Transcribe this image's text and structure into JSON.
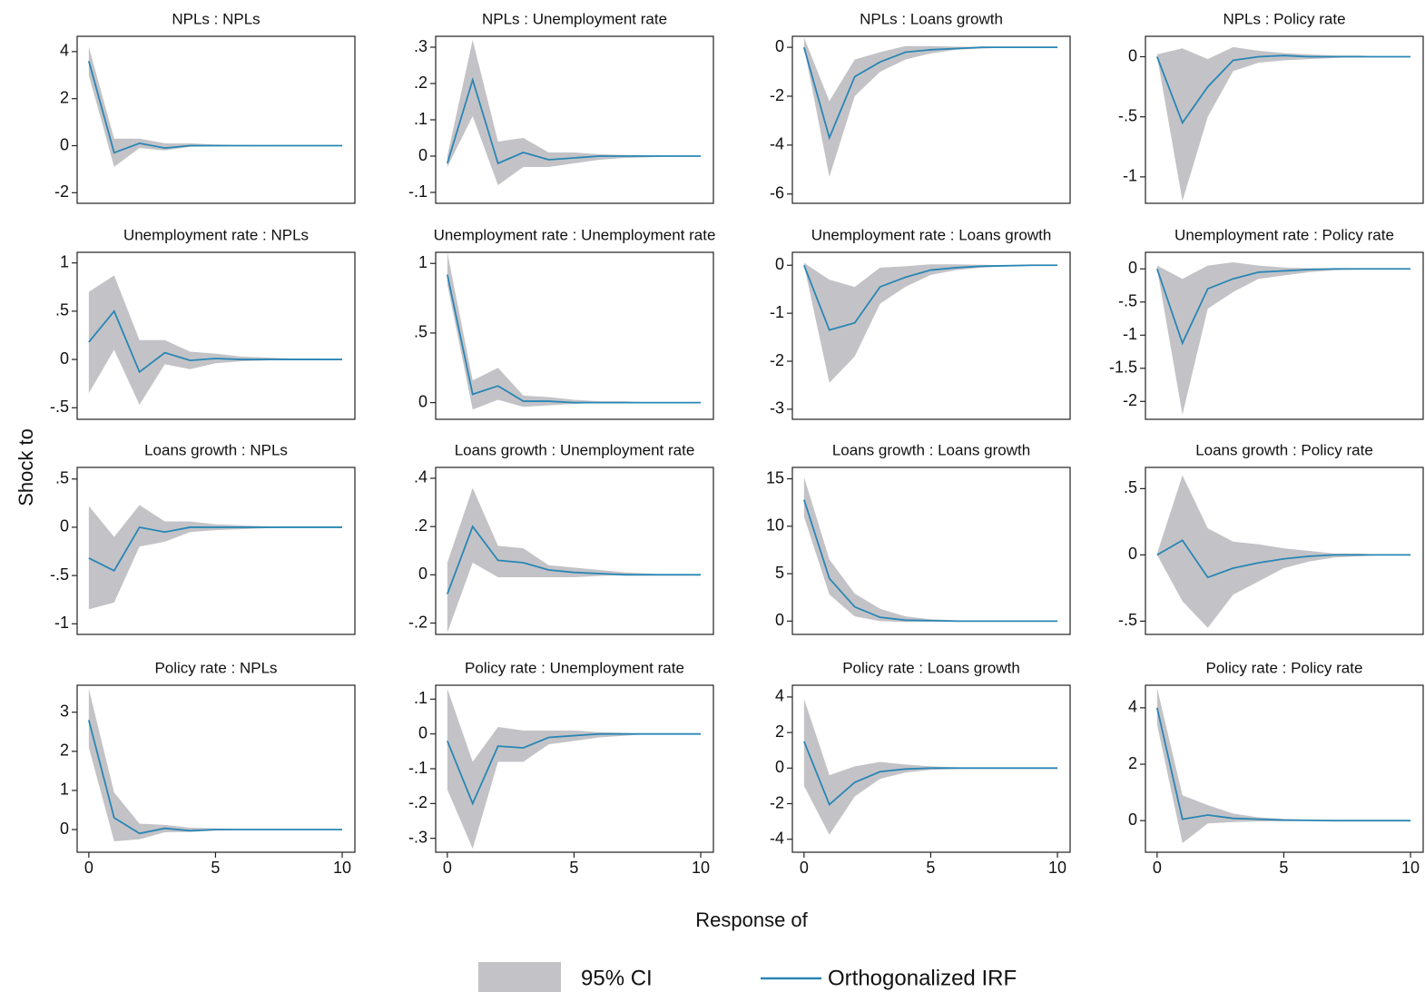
{
  "xlabel": "Response of",
  "ylabel": "Shock to",
  "legend": {
    "band": "95% CI",
    "line": "Orthogonalized IRF"
  },
  "band_color": "#c3c3c7",
  "line_color": "#2a86b4",
  "x": [
    0,
    1,
    2,
    3,
    4,
    5,
    6,
    7,
    8,
    9,
    10
  ],
  "xlim": [
    -0.46,
    10.5
  ],
  "xticks": [
    0,
    5,
    10
  ],
  "chart_data": [
    {
      "type": "line",
      "title": "NPLs : NPLs",
      "ylim": [
        -2.45,
        4.65
      ],
      "yticks": [
        4,
        2,
        0,
        -2
      ],
      "values": [
        3.6,
        -0.3,
        0.1,
        -0.1,
        0,
        0,
        0,
        0,
        0,
        0,
        0
      ],
      "lower": [
        3.0,
        -0.9,
        -0.1,
        -0.2,
        -0.05,
        -0.03,
        -0.02,
        -0.01,
        -0.01,
        0,
        0
      ],
      "upper": [
        4.2,
        0.3,
        0.3,
        0.1,
        0.1,
        0.05,
        0.03,
        0.02,
        0.01,
        0.01,
        0
      ]
    },
    {
      "type": "line",
      "title": "NPLs : Unemployment rate",
      "ylim": [
        -0.13,
        0.33
      ],
      "yticks": [
        {
          "value": 0.3,
          "label": ".3"
        },
        {
          "value": 0.2,
          "label": ".2"
        },
        {
          "value": 0.1,
          "label": ".1"
        },
        0,
        {
          "value": -0.1,
          "label": "-.1"
        }
      ],
      "values": [
        -0.02,
        0.21,
        -0.02,
        0.01,
        -0.01,
        -0.005,
        0,
        0,
        0,
        0,
        0
      ],
      "lower": [
        -0.03,
        0.11,
        -0.08,
        -0.03,
        -0.03,
        -0.02,
        -0.01,
        -0.005,
        -0.003,
        0,
        0
      ],
      "upper": [
        0,
        0.32,
        0.04,
        0.05,
        0.01,
        0.01,
        0.005,
        0.003,
        0.002,
        0.001,
        0
      ]
    },
    {
      "type": "line",
      "title": "NPLs : Loans growth",
      "ylim": [
        -6.38,
        0.45
      ],
      "yticks": [
        0,
        -2,
        -4,
        -6
      ],
      "values": [
        0,
        -3.7,
        -1.2,
        -0.6,
        -0.2,
        -0.1,
        -0.05,
        0,
        0,
        0,
        0
      ],
      "lower": [
        0,
        -5.3,
        -2,
        -1,
        -0.5,
        -0.25,
        -0.1,
        -0.05,
        -0.02,
        0,
        0
      ],
      "upper": [
        0.4,
        -2.2,
        -0.5,
        -0.2,
        0.05,
        0.05,
        0.03,
        0.01,
        0,
        0,
        0
      ]
    },
    {
      "type": "line",
      "title": "NPLs : Policy rate",
      "ylim": [
        -1.22,
        0.17
      ],
      "yticks": [
        0,
        {
          "value": -0.5,
          "label": "-.5"
        },
        -1
      ],
      "values": [
        0,
        -0.55,
        -0.25,
        -0.03,
        0,
        0.01,
        0,
        0,
        0,
        0,
        0
      ],
      "lower": [
        0,
        -1.2,
        -0.5,
        -0.12,
        -0.05,
        -0.03,
        -0.02,
        -0.01,
        0,
        0,
        0
      ],
      "upper": [
        0.02,
        0.07,
        -0.02,
        0.08,
        0.05,
        0.03,
        0.02,
        0.01,
        0.01,
        0,
        0
      ]
    },
    {
      "type": "line",
      "title": "Unemployment rate : NPLs",
      "ylim": [
        -0.62,
        1.11
      ],
      "yticks": [
        1,
        {
          "value": 0.5,
          "label": ".5"
        },
        0,
        {
          "value": -0.5,
          "label": "-.5"
        }
      ],
      "values": [
        0.18,
        0.5,
        -0.13,
        0.07,
        -0.01,
        0.01,
        0,
        0,
        0,
        0,
        0
      ],
      "lower": [
        -0.35,
        0.1,
        -0.47,
        -0.05,
        -0.1,
        -0.04,
        -0.02,
        -0.01,
        0,
        0,
        0
      ],
      "upper": [
        0.7,
        0.87,
        0.2,
        0.2,
        0.08,
        0.06,
        0.03,
        0.02,
        0.01,
        0.01,
        0
      ]
    },
    {
      "type": "line",
      "title": "Unemployment rate : Unemployment rate",
      "ylim": [
        -0.12,
        1.08
      ],
      "yticks": [
        1,
        {
          "value": 0.5,
          "label": ".5"
        },
        0
      ],
      "values": [
        0.92,
        0.06,
        0.12,
        0.01,
        0.01,
        0,
        0,
        0,
        0,
        0,
        0
      ],
      "lower": [
        0.85,
        -0.05,
        0.02,
        -0.03,
        -0.02,
        -0.01,
        0,
        0,
        0,
        0,
        0
      ],
      "upper": [
        1.08,
        0.16,
        0.25,
        0.05,
        0.04,
        0.02,
        0.01,
        0.01,
        0,
        0,
        0
      ]
    },
    {
      "type": "line",
      "title": "Unemployment rate : Loans growth",
      "ylim": [
        -3.21,
        0.27
      ],
      "yticks": [
        0,
        -1,
        -2,
        -3
      ],
      "values": [
        0,
        -1.35,
        -1.2,
        -0.45,
        -0.25,
        -0.1,
        -0.05,
        -0.02,
        -0.01,
        0,
        0
      ],
      "lower": [
        0,
        -2.45,
        -1.9,
        -0.8,
        -0.45,
        -0.2,
        -0.1,
        -0.05,
        -0.02,
        -0.01,
        0
      ],
      "upper": [
        0.05,
        -0.3,
        -0.45,
        -0.05,
        -0.02,
        0.02,
        0.02,
        0.01,
        0,
        0,
        0
      ]
    },
    {
      "type": "line",
      "title": "Unemployment rate : Policy rate",
      "ylim": [
        -2.27,
        0.25
      ],
      "yticks": [
        0,
        {
          "value": -0.5,
          "label": "-.5"
        },
        -1,
        -1.5,
        -2
      ],
      "values": [
        0,
        -1.12,
        -0.3,
        -0.15,
        -0.05,
        -0.03,
        -0.01,
        0,
        0,
        0,
        0
      ],
      "lower": [
        0,
        -2.2,
        -0.6,
        -0.35,
        -0.15,
        -0.1,
        -0.05,
        -0.02,
        -0.01,
        0,
        0
      ],
      "upper": [
        0.05,
        -0.15,
        0.05,
        0.1,
        0.05,
        0.02,
        0.01,
        0.01,
        0,
        0,
        0
      ]
    },
    {
      "type": "line",
      "title": "Loans growth : NPLs",
      "ylim": [
        -1.11,
        0.62
      ],
      "yticks": [
        {
          "value": 0.5,
          "label": ".5"
        },
        0,
        {
          "value": -0.5,
          "label": "-.5"
        },
        -1
      ],
      "values": [
        -0.32,
        -0.45,
        0,
        -0.05,
        0,
        0,
        0,
        0,
        0,
        0,
        0
      ],
      "lower": [
        -0.85,
        -0.78,
        -0.2,
        -0.15,
        -0.05,
        -0.03,
        -0.02,
        -0.01,
        0,
        0,
        0
      ],
      "upper": [
        0.22,
        -0.1,
        0.23,
        0.06,
        0.06,
        0.03,
        0.02,
        0.01,
        0,
        0,
        0
      ]
    },
    {
      "type": "line",
      "title": "Loans growth : Unemployment rate",
      "ylim": [
        -0.247,
        0.445
      ],
      "yticks": [
        {
          "value": 0.4,
          "label": ".4"
        },
        {
          "value": 0.2,
          "label": ".2"
        },
        0,
        {
          "value": -0.2,
          "label": "-.2"
        }
      ],
      "values": [
        -0.08,
        0.2,
        0.06,
        0.05,
        0.02,
        0.01,
        0.005,
        0,
        0,
        0,
        0
      ],
      "lower": [
        -0.24,
        0.05,
        -0.01,
        -0.01,
        -0.01,
        -0.01,
        -0.005,
        0,
        0,
        0,
        0
      ],
      "upper": [
        0.05,
        0.36,
        0.12,
        0.11,
        0.04,
        0.03,
        0.02,
        0.01,
        0.005,
        0,
        0
      ]
    },
    {
      "type": "line",
      "title": "Loans growth : Loans growth",
      "ylim": [
        -1.4,
        16.2
      ],
      "yticks": [
        15,
        10,
        5,
        0
      ],
      "values": [
        12.8,
        4.5,
        1.5,
        0.4,
        0.1,
        0.05,
        0,
        0,
        0,
        0,
        0
      ],
      "lower": [
        11,
        2.8,
        0.5,
        0,
        -0.1,
        -0.05,
        0,
        0,
        0,
        0,
        0
      ],
      "upper": [
        15.2,
        6.5,
        2.9,
        1.3,
        0.5,
        0.2,
        0.1,
        0.05,
        0,
        0,
        0
      ]
    },
    {
      "type": "line",
      "title": "Loans growth : Policy rate",
      "ylim": [
        -0.6,
        0.66
      ],
      "yticks": [
        {
          "value": 0.5,
          "label": ".5"
        },
        0,
        {
          "value": -0.5,
          "label": "-.5"
        }
      ],
      "values": [
        0,
        0.11,
        -0.17,
        -0.1,
        -0.06,
        -0.03,
        -0.01,
        0,
        0,
        0,
        0
      ],
      "lower": [
        0,
        -0.35,
        -0.55,
        -0.3,
        -0.2,
        -0.1,
        -0.05,
        -0.02,
        -0.01,
        0,
        0
      ],
      "upper": [
        0.01,
        0.6,
        0.2,
        0.1,
        0.08,
        0.05,
        0.03,
        0.01,
        0.01,
        0,
        0
      ]
    },
    {
      "type": "line",
      "title": "Policy rate : NPLs",
      "ylim": [
        -0.58,
        3.69
      ],
      "yticks": [
        3,
        2,
        1,
        0
      ],
      "values": [
        2.8,
        0.3,
        -0.1,
        0.03,
        -0.03,
        0,
        0,
        0,
        0,
        0,
        0
      ],
      "lower": [
        2.1,
        -0.3,
        -0.25,
        -0.07,
        -0.06,
        -0.03,
        -0.01,
        0,
        0,
        0,
        0
      ],
      "upper": [
        3.6,
        0.95,
        0.15,
        0.12,
        0.05,
        0.03,
        0.01,
        0.01,
        0,
        0,
        0
      ]
    },
    {
      "type": "line",
      "title": "Policy rate : Unemployment rate",
      "ylim": [
        -0.34,
        0.14
      ],
      "yticks": [
        {
          "value": 0.1,
          "label": ".1"
        },
        0,
        {
          "value": -0.1,
          "label": "-.1"
        },
        {
          "value": -0.2,
          "label": "-.2"
        },
        {
          "value": -0.3,
          "label": "-.3"
        }
      ],
      "values": [
        -0.02,
        -0.2,
        -0.035,
        -0.04,
        -0.01,
        -0.005,
        0,
        0,
        0,
        0,
        0
      ],
      "lower": [
        -0.16,
        -0.33,
        -0.08,
        -0.08,
        -0.03,
        -0.02,
        -0.01,
        -0.005,
        0,
        0,
        0
      ],
      "upper": [
        0.13,
        -0.08,
        0.02,
        0.01,
        0.01,
        0.01,
        0.005,
        0.003,
        0,
        0,
        0
      ]
    },
    {
      "type": "line",
      "title": "Policy rate : Loans growth",
      "ylim": [
        -4.73,
        4.66
      ],
      "yticks": [
        4,
        2,
        0,
        -2,
        -4
      ],
      "values": [
        1.5,
        -2.05,
        -0.8,
        -0.2,
        -0.05,
        0,
        0,
        0,
        0,
        0,
        0
      ],
      "lower": [
        -1,
        -3.75,
        -1.6,
        -0.6,
        -0.25,
        -0.1,
        -0.05,
        0,
        0,
        0,
        0
      ],
      "upper": [
        3.9,
        -0.4,
        0.1,
        0.35,
        0.2,
        0.1,
        0.05,
        0.02,
        0,
        0,
        0
      ]
    },
    {
      "type": "line",
      "title": "Policy rate : Policy rate",
      "ylim": [
        -1.12,
        4.8
      ],
      "yticks": [
        4,
        2,
        0
      ],
      "values": [
        4,
        0.05,
        0.2,
        0.08,
        0.05,
        0.02,
        0.01,
        0,
        0,
        0,
        0
      ],
      "lower": [
        3.4,
        -0.8,
        -0.1,
        -0.05,
        -0.03,
        -0.02,
        -0.01,
        0,
        0,
        0,
        0
      ],
      "upper": [
        4.7,
        0.9,
        0.55,
        0.25,
        0.12,
        0.06,
        0.03,
        0.01,
        0.01,
        0,
        0
      ]
    }
  ]
}
